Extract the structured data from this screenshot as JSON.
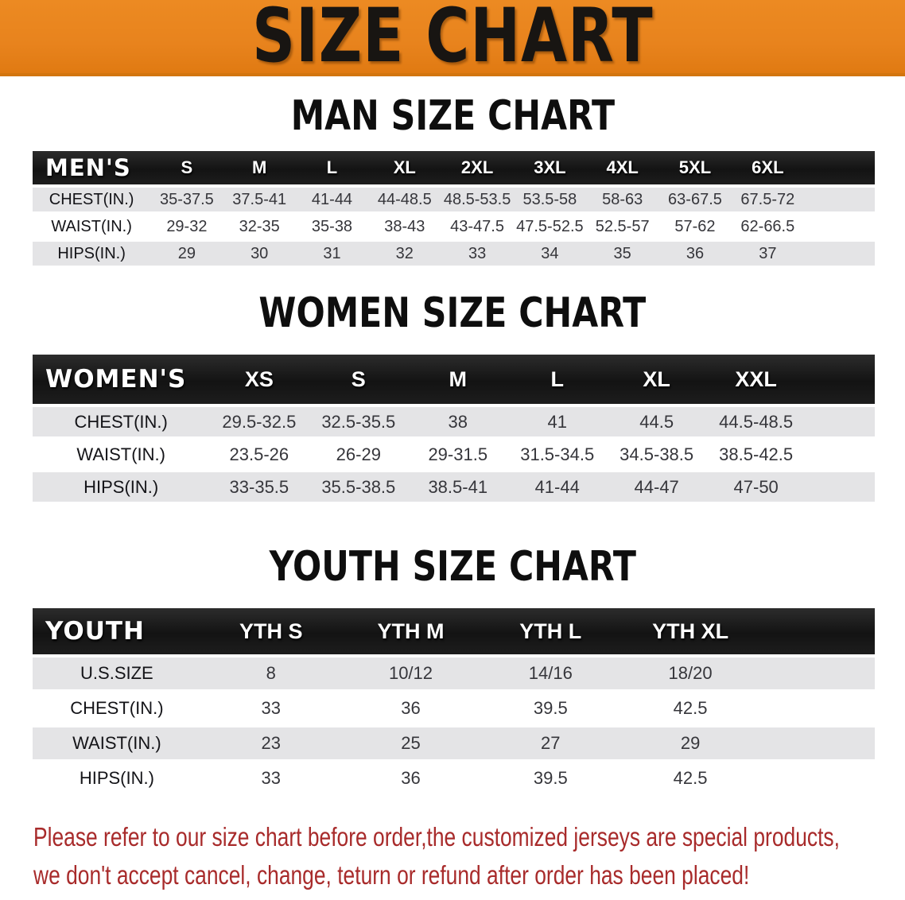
{
  "banner": {
    "title": "SIZE CHART"
  },
  "sections": {
    "men": {
      "heading": "MAN SIZE CHART"
    },
    "women": {
      "heading": "WOMEN SIZE CHART"
    },
    "youth": {
      "heading": "YOUTH SIZE CHART"
    }
  },
  "tables": {
    "men": {
      "header_label": "MEN'S",
      "columns": [
        "S",
        "M",
        "L",
        "XL",
        "2XL",
        "3XL",
        "4XL",
        "5XL",
        "6XL"
      ],
      "rows": [
        {
          "label": "CHEST(IN.)",
          "values": [
            "35-37.5",
            "37.5-41",
            "41-44",
            "44-48.5",
            "48.5-53.5",
            "53.5-58",
            "58-63",
            "63-67.5",
            "67.5-72"
          ]
        },
        {
          "label": "WAIST(IN.)",
          "values": [
            "29-32",
            "32-35",
            "35-38",
            "38-43",
            "43-47.5",
            "47.5-52.5",
            "52.5-57",
            "57-62",
            "62-66.5"
          ]
        },
        {
          "label": "HIPS(IN.)",
          "values": [
            "29",
            "30",
            "31",
            "32",
            "33",
            "34",
            "35",
            "36",
            "37"
          ]
        }
      ]
    },
    "women": {
      "header_label": "WOMEN'S",
      "columns": [
        "XS",
        "S",
        "M",
        "L",
        "XL",
        "XXL"
      ],
      "rows": [
        {
          "label": "CHEST(IN.)",
          "values": [
            "29.5-32.5",
            "32.5-35.5",
            "38",
            "41",
            "44.5",
            "44.5-48.5"
          ]
        },
        {
          "label": "WAIST(IN.)",
          "values": [
            "23.5-26",
            "26-29",
            "29-31.5",
            "31.5-34.5",
            "34.5-38.5",
            "38.5-42.5"
          ]
        },
        {
          "label": "HIPS(IN.)",
          "values": [
            "33-35.5",
            "35.5-38.5",
            "38.5-41",
            "41-44",
            "44-47",
            "47-50"
          ]
        }
      ]
    },
    "youth": {
      "header_label": "YOUTH",
      "columns": [
        "YTH S",
        "YTH M",
        "YTH L",
        "YTH XL"
      ],
      "rows": [
        {
          "label": "U.S.SIZE",
          "values": [
            "8",
            "10/12",
            "14/16",
            "18/20"
          ]
        },
        {
          "label": "CHEST(IN.)",
          "values": [
            "33",
            "36",
            "39.5",
            "42.5"
          ]
        },
        {
          "label": "WAIST(IN.)",
          "values": [
            "23",
            "25",
            "27",
            "29"
          ]
        },
        {
          "label": "HIPS(IN.)",
          "values": [
            "33",
            "36",
            "39.5",
            "42.5"
          ]
        }
      ]
    }
  },
  "footer": {
    "line1": "Please refer to our size chart before order,the customized jerseys are special products,",
    "line2": "we don't accept cancel, change, teturn or refund after order has been placed!"
  },
  "colors": {
    "banner_orange": "#e8831d",
    "header_black": "#191919",
    "row_gray": "#e4e4e6",
    "footer_red": "#a82b2b"
  }
}
